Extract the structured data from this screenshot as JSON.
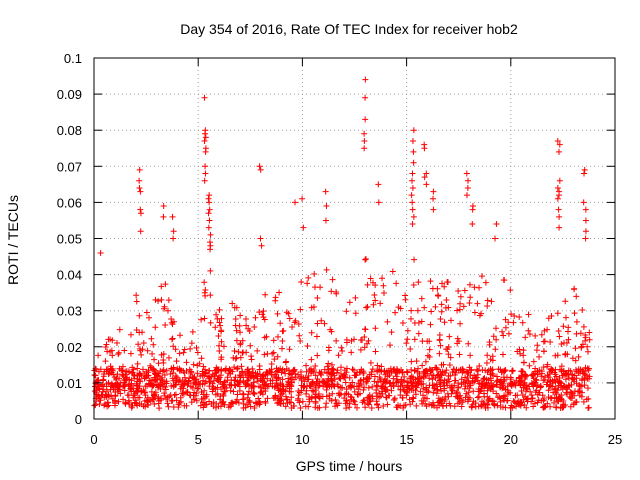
{
  "chart_data": {
    "type": "scatter",
    "title": "Day 354 of 2016, Rate Of TEC Index for receiver hob2",
    "xlabel": "GPS time / hours",
    "ylabel": "ROTI / TECUs",
    "xlim": [
      0,
      25
    ],
    "ylim": [
      0,
      0.1
    ],
    "x_ticks": [
      "0",
      "5",
      "10",
      "15",
      "20",
      "25"
    ],
    "y_ticks": [
      "0",
      "0.01",
      "0.02",
      "0.03",
      "0.04",
      "0.05",
      "0.06",
      "0.07",
      "0.08",
      "0.09",
      "0.1"
    ],
    "grid": true,
    "marker": "+",
    "color": "#ff0000",
    "x_range": [
      0,
      23.8
    ],
    "base_level": 0.009,
    "envelope": [
      {
        "x": 0,
        "y": 0.018
      },
      {
        "x": 0.5,
        "y": 0.025
      },
      {
        "x": 1,
        "y": 0.022
      },
      {
        "x": 1.5,
        "y": 0.03
      },
      {
        "x": 2,
        "y": 0.035
      },
      {
        "x": 2.5,
        "y": 0.03
      },
      {
        "x": 3,
        "y": 0.035
      },
      {
        "x": 3.5,
        "y": 0.04
      },
      {
        "x": 4,
        "y": 0.025
      },
      {
        "x": 4.5,
        "y": 0.03
      },
      {
        "x": 5,
        "y": 0.035
      },
      {
        "x": 5.5,
        "y": 0.045
      },
      {
        "x": 6,
        "y": 0.03
      },
      {
        "x": 6.5,
        "y": 0.035
      },
      {
        "x": 7,
        "y": 0.03
      },
      {
        "x": 7.5,
        "y": 0.032
      },
      {
        "x": 8,
        "y": 0.04
      },
      {
        "x": 8.5,
        "y": 0.032
      },
      {
        "x": 9,
        "y": 0.036
      },
      {
        "x": 9.5,
        "y": 0.038
      },
      {
        "x": 10,
        "y": 0.04
      },
      {
        "x": 10.5,
        "y": 0.042
      },
      {
        "x": 11,
        "y": 0.045
      },
      {
        "x": 11.5,
        "y": 0.04
      },
      {
        "x": 12,
        "y": 0.038
      },
      {
        "x": 12.5,
        "y": 0.04
      },
      {
        "x": 13,
        "y": 0.045
      },
      {
        "x": 13.5,
        "y": 0.042
      },
      {
        "x": 14,
        "y": 0.04
      },
      {
        "x": 14.5,
        "y": 0.042
      },
      {
        "x": 15,
        "y": 0.045
      },
      {
        "x": 15.5,
        "y": 0.045
      },
      {
        "x": 16,
        "y": 0.045
      },
      {
        "x": 16.5,
        "y": 0.04
      },
      {
        "x": 17,
        "y": 0.038
      },
      {
        "x": 17.5,
        "y": 0.04
      },
      {
        "x": 18,
        "y": 0.042
      },
      {
        "x": 18.5,
        "y": 0.04
      },
      {
        "x": 19,
        "y": 0.04
      },
      {
        "x": 19.5,
        "y": 0.038
      },
      {
        "x": 20,
        "y": 0.04
      },
      {
        "x": 20.5,
        "y": 0.03
      },
      {
        "x": 21,
        "y": 0.03
      },
      {
        "x": 21.5,
        "y": 0.028
      },
      {
        "x": 22,
        "y": 0.03
      },
      {
        "x": 22.5,
        "y": 0.035
      },
      {
        "x": 23,
        "y": 0.038
      },
      {
        "x": 23.5,
        "y": 0.03
      },
      {
        "x": 23.8,
        "y": 0.028
      }
    ],
    "spikes": [
      {
        "x": 0.35,
        "ys": [
          0.046
        ]
      },
      {
        "x": 2.2,
        "ys": [
          0.069,
          0.066,
          0.064,
          0.063,
          0.058,
          0.057,
          0.052
        ]
      },
      {
        "x": 3.3,
        "ys": [
          0.059,
          0.056
        ]
      },
      {
        "x": 3.8,
        "ys": [
          0.056,
          0.052,
          0.05
        ]
      },
      {
        "x": 5.35,
        "ys": [
          0.089,
          0.08,
          0.079,
          0.078,
          0.077,
          0.075,
          0.074,
          0.07,
          0.068,
          0.066
        ]
      },
      {
        "x": 5.55,
        "ys": [
          0.062,
          0.061,
          0.06,
          0.058,
          0.057,
          0.055,
          0.053,
          0.051,
          0.049,
          0.048,
          0.047
        ]
      },
      {
        "x": 8.0,
        "ys": [
          0.07,
          0.069,
          0.05,
          0.048
        ]
      },
      {
        "x": 9.7,
        "ys": [
          0.06
        ]
      },
      {
        "x": 10.0,
        "ys": [
          0.061,
          0.053
        ]
      },
      {
        "x": 11.1,
        "ys": [
          0.063,
          0.059,
          0.055
        ]
      },
      {
        "x": 13.0,
        "ys": [
          0.094,
          0.089,
          0.083,
          0.079,
          0.077,
          0.075
        ]
      },
      {
        "x": 13.7,
        "ys": [
          0.065,
          0.06
        ]
      },
      {
        "x": 15.3,
        "ys": [
          0.08,
          0.077,
          0.074,
          0.071,
          0.068,
          0.066,
          0.064,
          0.062,
          0.06,
          0.058,
          0.056,
          0.054
        ]
      },
      {
        "x": 15.9,
        "ys": [
          0.076,
          0.075,
          0.068,
          0.067,
          0.065
        ]
      },
      {
        "x": 16.3,
        "ys": [
          0.063,
          0.061,
          0.058
        ]
      },
      {
        "x": 17.9,
        "ys": [
          0.068,
          0.066,
          0.064,
          0.062
        ]
      },
      {
        "x": 18.15,
        "ys": [
          0.059,
          0.058,
          0.054
        ]
      },
      {
        "x": 19.3,
        "ys": [
          0.054,
          0.05
        ]
      },
      {
        "x": 22.3,
        "ys": [
          0.077,
          0.076,
          0.074,
          0.066,
          0.064,
          0.063,
          0.062,
          0.061,
          0.058,
          0.056,
          0.053
        ]
      },
      {
        "x": 23.55,
        "ys": [
          0.069,
          0.068,
          0.06,
          0.058,
          0.055,
          0.052,
          0.05
        ]
      }
    ]
  }
}
